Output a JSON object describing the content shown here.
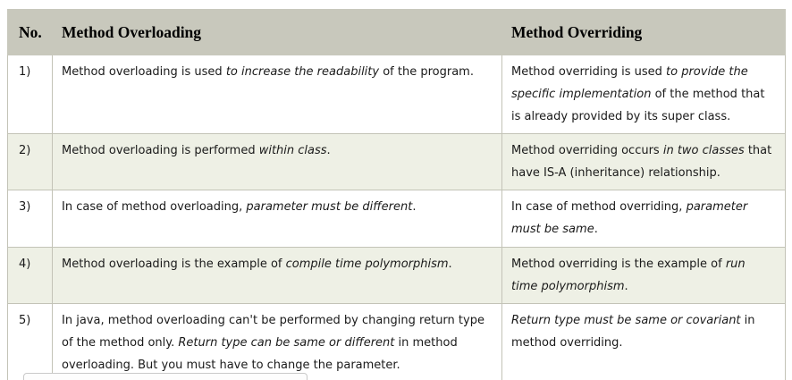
{
  "colors": {
    "header_bg": "#c8c8bc",
    "alt_row_bg": "#eef0e5",
    "cell_border": "#c3c3b7",
    "body_text": "#1a1a1a"
  },
  "table": {
    "headers": [
      {
        "label": "No."
      },
      {
        "label": "Method Overloading"
      },
      {
        "label": "Method Overriding"
      }
    ],
    "rows": [
      {
        "no": "1)",
        "overloading": [
          {
            "t": "Method overloading is used "
          },
          {
            "t": "to increase the readability",
            "i": true
          },
          {
            "t": " of the program."
          }
        ],
        "overriding": [
          {
            "t": "Method overriding is used "
          },
          {
            "t": "to provide the specific implementation",
            "i": true
          },
          {
            "t": " of the method that is already provided by its super class."
          }
        ]
      },
      {
        "no": "2)",
        "overloading": [
          {
            "t": "Method overloading is performed "
          },
          {
            "t": "within class",
            "i": true
          },
          {
            "t": "."
          }
        ],
        "overriding": [
          {
            "t": "Method overriding occurs "
          },
          {
            "t": "in two classes",
            "i": true
          },
          {
            "t": " that have IS-A (inheritance) relationship."
          }
        ]
      },
      {
        "no": "3)",
        "overloading": [
          {
            "t": "In case of method overloading, "
          },
          {
            "t": "parameter must be different",
            "i": true
          },
          {
            "t": "."
          }
        ],
        "overriding": [
          {
            "t": "In case of method overriding, "
          },
          {
            "t": "parameter must be same",
            "i": true
          },
          {
            "t": "."
          }
        ]
      },
      {
        "no": "4)",
        "overloading": [
          {
            "t": "Method overloading is the example of "
          },
          {
            "t": "compile time polymorphism",
            "i": true
          },
          {
            "t": "."
          }
        ],
        "overriding": [
          {
            "t": "Method overriding is the example of "
          },
          {
            "t": "run time polymorphism",
            "i": true
          },
          {
            "t": "."
          }
        ]
      },
      {
        "no": "5)",
        "overloading": [
          {
            "t": "In java, method overloading can't be performed by changing return type of the method only. "
          },
          {
            "t": "Return type can be same or different",
            "i": true
          },
          {
            "t": " in method overloading. But you must have to change the parameter."
          }
        ],
        "overriding": [
          {
            "t": "Return type must be same or covariant",
            "i": true
          },
          {
            "t": " in method overriding."
          }
        ]
      }
    ]
  }
}
